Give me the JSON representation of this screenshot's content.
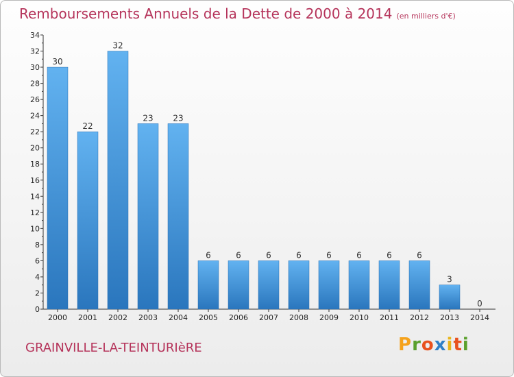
{
  "header": {
    "title": "Remboursements Annuels de la Dette de 2000 à 2014",
    "unit": "(en milliers d'€)"
  },
  "footer": {
    "commune": "GRAINVILLE-LA-TEINTURIèRE",
    "logo": {
      "letters": [
        "P",
        "r",
        "o",
        "x",
        "i",
        "t",
        "i"
      ],
      "colors": [
        "#f5a21b",
        "#5aa02c",
        "#e8521e",
        "#2f7fc6",
        "#e8b51b",
        "#e8521e",
        "#5aa02c"
      ]
    }
  },
  "chart_data": {
    "type": "bar",
    "categories": [
      "2000",
      "2001",
      "2002",
      "2003",
      "2004",
      "2005",
      "2006",
      "2007",
      "2008",
      "2009",
      "2010",
      "2011",
      "2012",
      "2013",
      "2014"
    ],
    "values": [
      30,
      22,
      32,
      23,
      23,
      6,
      6,
      6,
      6,
      6,
      6,
      6,
      6,
      3,
      0
    ],
    "ylim": [
      0,
      34
    ],
    "yticks": [
      0,
      2,
      4,
      6,
      8,
      10,
      12,
      14,
      16,
      18,
      20,
      22,
      24,
      26,
      28,
      30,
      32,
      34
    ],
    "bar_color": "#3d8fd6",
    "grid": false
  }
}
